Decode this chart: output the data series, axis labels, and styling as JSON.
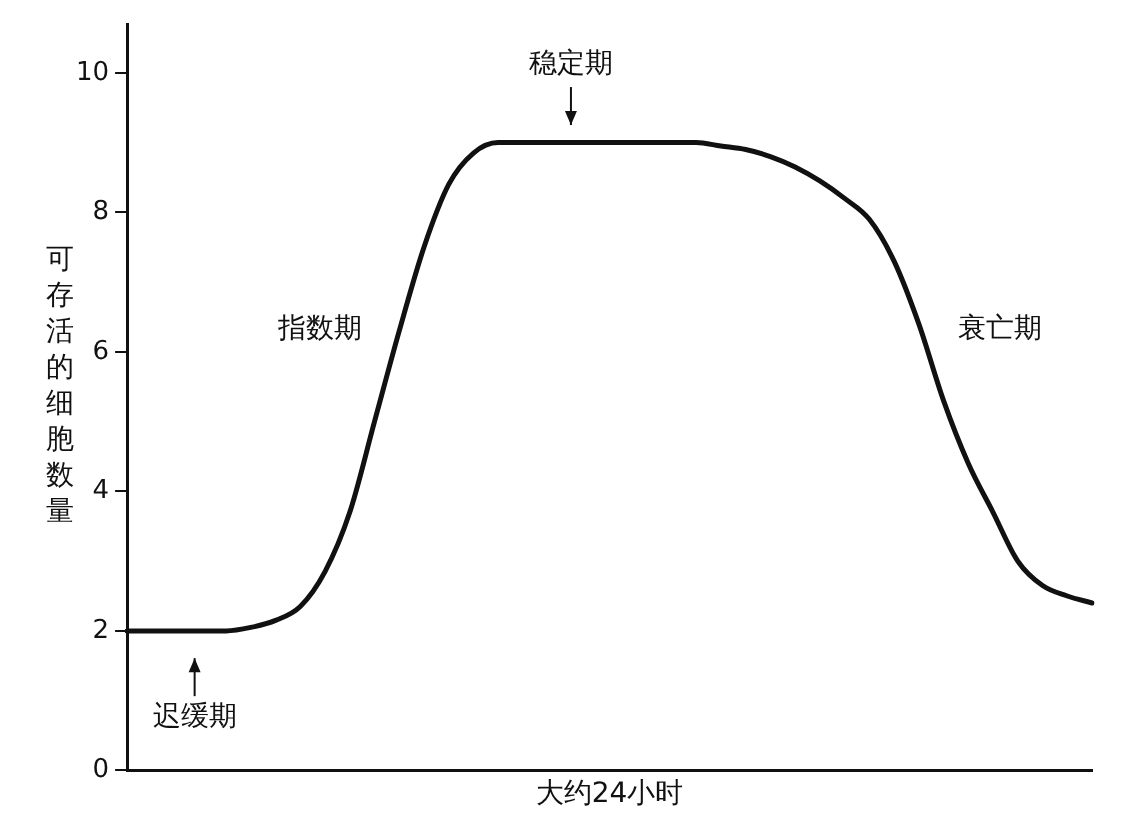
{
  "chart_data": {
    "type": "line",
    "xlabel": "大约24小时",
    "ylabel": "可存活的细胞数量",
    "categories": [
      null,
      null,
      null,
      null,
      null,
      null,
      null,
      null,
      null,
      null,
      null,
      null,
      null,
      null,
      null,
      null,
      null,
      null,
      null,
      null,
      null,
      null,
      null,
      null,
      null,
      null,
      null,
      null,
      null,
      null,
      null,
      null,
      null,
      null,
      null,
      null,
      null,
      null,
      null,
      null
    ],
    "series": [
      {
        "color": "#111111",
        "values": [
          2.0,
          2.0,
          2.0,
          2.0,
          2.0,
          2.05,
          2.15,
          2.35,
          2.85,
          3.7,
          5.0,
          6.3,
          7.5,
          8.4,
          8.85,
          9.0,
          9.0,
          9.0,
          9.0,
          9.0,
          9.0,
          9.0,
          9.0,
          9.0,
          8.95,
          8.9,
          8.8,
          8.65,
          8.45,
          8.2,
          7.9,
          7.3,
          6.4,
          5.3,
          4.4,
          3.7,
          3.0,
          2.65,
          2.5,
          2.4
        ]
      }
    ],
    "ylim": [
      0,
      10.7
    ],
    "yticks": [
      0,
      2,
      4,
      6,
      8,
      10
    ],
    "grid": false,
    "legend": false,
    "marker": "none",
    "line_style": "solid",
    "tick_labels": "y",
    "annotations": [
      "稳定期",
      "指数期",
      "衰亡期",
      "迟缓期"
    ]
  }
}
